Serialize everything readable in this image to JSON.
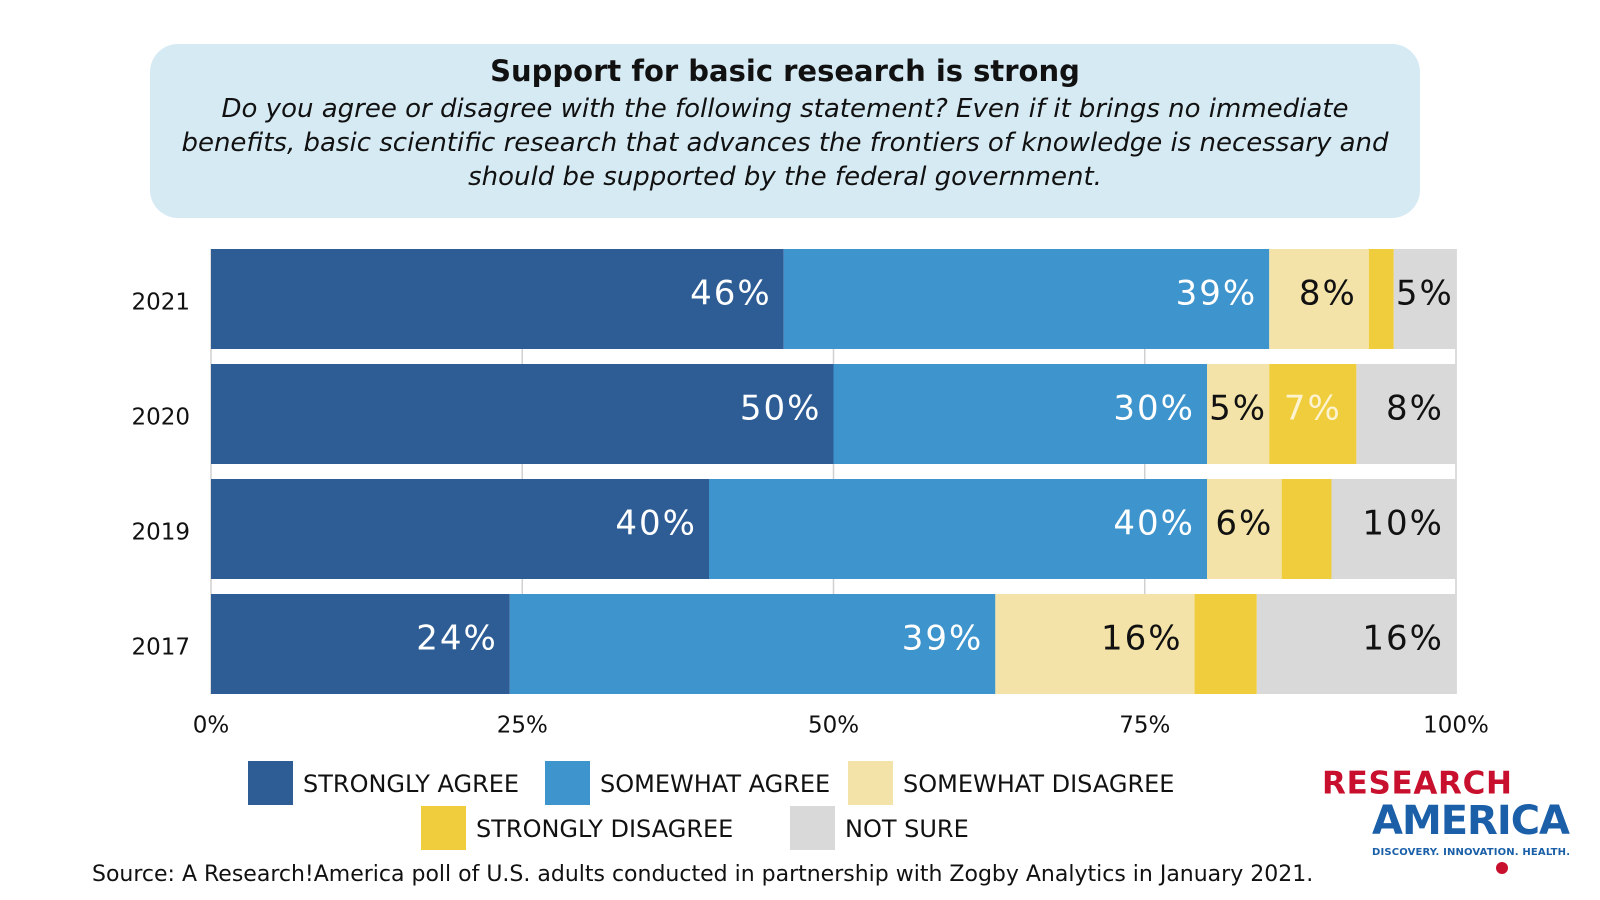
{
  "chart_data": {
    "type": "stacked-bar-horizontal",
    "title": "Support for basic research is strong",
    "subtitle": "Do you agree or disagree with the following statement? Even if it brings no immediate benefits, basic scientific research that advances the frontiers of knowledge is necessary and should be supported by the federal government.",
    "categories": [
      "2021",
      "2020",
      "2019",
      "2017"
    ],
    "series": [
      {
        "name": "STRONGLY AGREE",
        "color": "#2e5d96",
        "label_color": "#ffffff",
        "values": [
          46,
          50,
          40,
          24
        ],
        "value_labels": [
          "46%",
          "50%",
          "40%",
          "24%"
        ]
      },
      {
        "name": "SOMEWHAT AGREE",
        "color": "#3e94cc",
        "label_color": "#ffffff",
        "values": [
          39,
          30,
          40,
          39
        ],
        "value_labels": [
          "39%",
          "30%",
          "40%",
          "39%"
        ]
      },
      {
        "name": "SOMEWHAT DISAGREE",
        "color": "#f3e3a8",
        "label_color": "#111111",
        "values": [
          8,
          5,
          6,
          16
        ],
        "value_labels": [
          "8%",
          "5%",
          "6%",
          "16%"
        ]
      },
      {
        "name": "STRONGLY DISAGREE",
        "color": "#f0cd3d",
        "label_color": "#fdf3d0",
        "values": [
          2,
          7,
          4,
          5
        ],
        "value_labels": [
          null,
          "7%",
          null,
          null
        ]
      },
      {
        "name": "NOT SURE",
        "color": "#d9d9d9",
        "label_color": "#111111",
        "values": [
          5,
          8,
          10,
          16
        ],
        "value_labels": [
          "5%",
          "8%",
          "10%",
          "16%"
        ]
      }
    ],
    "xlim": [
      0,
      100
    ],
    "xticks": [
      {
        "value": 0,
        "label": "0%"
      },
      {
        "value": 25,
        "label": "25%"
      },
      {
        "value": 50,
        "label": "50%"
      },
      {
        "value": 75,
        "label": "75%"
      },
      {
        "value": 100,
        "label": "100%"
      }
    ],
    "grid": true,
    "source": "Source:  A Research!America poll of U.S. adults conducted in partnership with Zogby Analytics in January 2021.",
    "logo": {
      "line1": "RESEARCH",
      "line2": "AMERICA",
      "tagline": "DISCOVERY. INNOVATION. HEALTH."
    }
  }
}
